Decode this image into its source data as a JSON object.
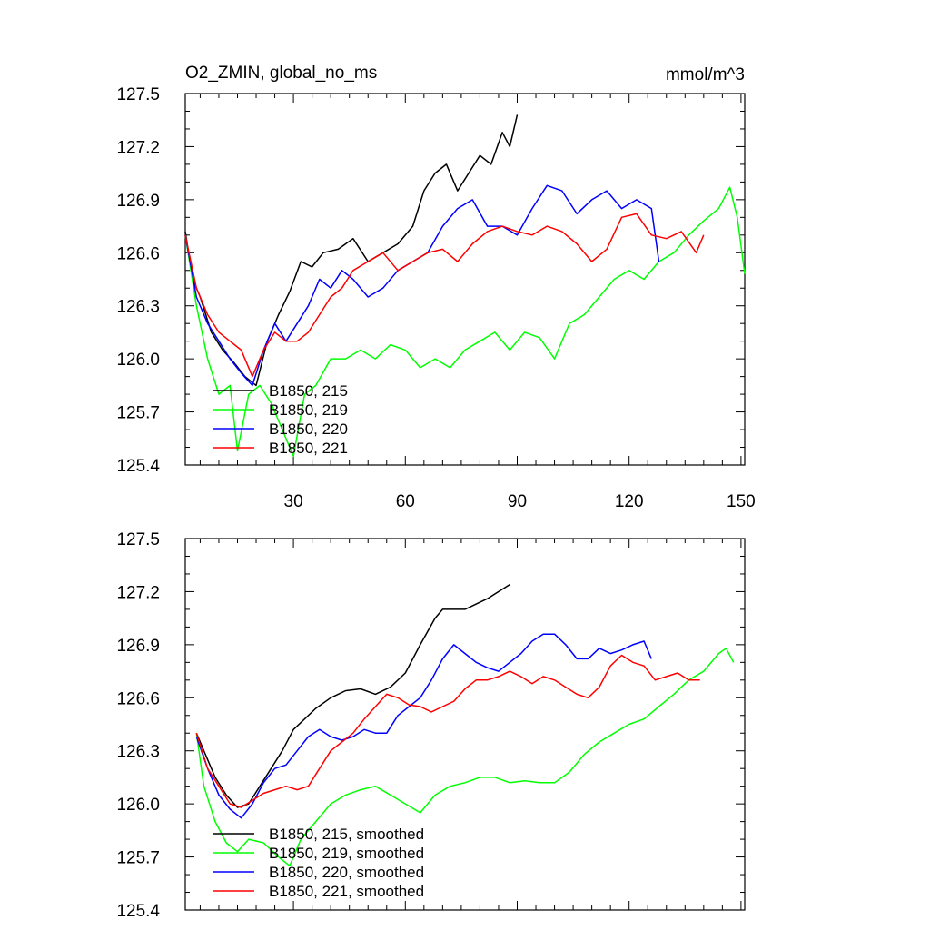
{
  "panel_top": {
    "title_left": "O2_ZMIN, global_no_ms",
    "title_right": "mmol/m^3"
  },
  "chart_data": [
    {
      "type": "line",
      "id": "raw",
      "title": "O2_ZMIN, global_no_ms",
      "units": "mmol/m^3",
      "xlim": [
        1,
        151
      ],
      "ylim": [
        125.4,
        127.5
      ],
      "x_ticks": [
        30,
        60,
        90,
        120,
        150
      ],
      "y_ticks": [
        125.4,
        125.7,
        126.0,
        126.3,
        126.6,
        126.9,
        127.2,
        127.5
      ],
      "y_tick_labels": [
        "125.4",
        "125.7",
        "126.0",
        "126.3",
        "126.6",
        "126.9",
        "127.2",
        "127.5"
      ],
      "x_tick_labels": [
        "30",
        "60",
        "90",
        "120",
        "150"
      ],
      "legend_position": "bottom-left",
      "series": [
        {
          "name": "B1850, 215",
          "color": "#000000",
          "x": [
            1,
            3,
            5,
            8,
            11,
            14,
            17,
            20,
            23,
            26,
            29,
            32,
            35,
            38,
            42,
            46,
            50,
            54,
            58,
            62,
            65,
            68,
            71,
            74,
            77,
            80,
            83,
            86,
            88,
            90
          ],
          "y": [
            126.72,
            126.45,
            126.35,
            126.15,
            126.05,
            125.98,
            125.9,
            125.85,
            126.1,
            126.25,
            126.38,
            126.55,
            126.52,
            126.6,
            126.62,
            126.68,
            126.55,
            126.6,
            126.65,
            126.75,
            126.95,
            127.05,
            127.1,
            126.95,
            127.05,
            127.15,
            127.1,
            127.28,
            127.2,
            127.38
          ]
        },
        {
          "name": "B1850, 219",
          "color": "#00ff00",
          "x": [
            1,
            4,
            7,
            10,
            13,
            15,
            18,
            21,
            24,
            27,
            30,
            33,
            36,
            40,
            44,
            48,
            52,
            56,
            60,
            64,
            68,
            72,
            76,
            80,
            84,
            88,
            92,
            96,
            100,
            104,
            108,
            112,
            116,
            120,
            124,
            128,
            132,
            136,
            140,
            144,
            147,
            149,
            151
          ],
          "y": [
            126.7,
            126.3,
            126.0,
            125.8,
            125.85,
            125.48,
            125.8,
            125.85,
            125.75,
            125.6,
            125.45,
            125.8,
            125.85,
            126.0,
            126.0,
            126.05,
            126.0,
            126.08,
            126.05,
            125.95,
            126.0,
            125.95,
            126.05,
            126.1,
            126.15,
            126.05,
            126.15,
            126.12,
            126.0,
            126.2,
            126.25,
            126.35,
            126.45,
            126.5,
            126.45,
            126.55,
            126.6,
            126.7,
            126.78,
            126.85,
            126.97,
            126.8,
            126.48
          ]
        },
        {
          "name": "B1850, 220",
          "color": "#0000ff",
          "x": [
            1,
            4,
            7,
            10,
            13,
            16,
            19,
            22,
            25,
            28,
            31,
            34,
            37,
            40,
            43,
            46,
            50,
            54,
            58,
            62,
            66,
            70,
            74,
            78,
            82,
            86,
            90,
            94,
            98,
            102,
            106,
            110,
            114,
            118,
            122,
            126,
            128
          ],
          "y": [
            126.7,
            126.35,
            126.2,
            126.1,
            126.0,
            125.92,
            125.85,
            126.05,
            126.2,
            126.1,
            126.2,
            126.3,
            126.45,
            126.4,
            126.5,
            126.45,
            126.35,
            126.4,
            126.5,
            126.55,
            126.6,
            126.75,
            126.85,
            126.9,
            126.75,
            126.75,
            126.7,
            126.85,
            126.98,
            126.95,
            126.82,
            126.9,
            126.95,
            126.85,
            126.9,
            126.85,
            126.55
          ]
        },
        {
          "name": "B1850, 221",
          "color": "#ff0000",
          "x": [
            1,
            4,
            7,
            10,
            13,
            16,
            19,
            22,
            25,
            28,
            31,
            34,
            37,
            40,
            43,
            46,
            50,
            54,
            58,
            62,
            66,
            70,
            74,
            78,
            82,
            86,
            90,
            94,
            98,
            102,
            106,
            110,
            114,
            118,
            122,
            126,
            130,
            134,
            138,
            140
          ],
          "y": [
            126.7,
            126.4,
            126.25,
            126.15,
            126.1,
            126.05,
            125.9,
            126.05,
            126.15,
            126.1,
            126.1,
            126.15,
            126.25,
            126.35,
            126.4,
            126.5,
            126.55,
            126.6,
            126.5,
            126.55,
            126.6,
            126.62,
            126.55,
            126.65,
            126.72,
            126.75,
            126.72,
            126.7,
            126.75,
            126.72,
            126.65,
            126.55,
            126.62,
            126.8,
            126.82,
            126.7,
            126.68,
            126.72,
            126.6,
            126.7
          ]
        }
      ]
    },
    {
      "type": "line",
      "id": "smoothed",
      "xlim": [
        1,
        151
      ],
      "ylim": [
        125.4,
        127.5
      ],
      "x_ticks": [
        30,
        60,
        90,
        120,
        150
      ],
      "y_ticks": [
        125.4,
        125.7,
        126.0,
        126.3,
        126.6,
        126.9,
        127.2,
        127.5
      ],
      "y_tick_labels": [
        "125.4",
        "125.7",
        "126.0",
        "126.3",
        "126.6",
        "126.9",
        "127.2",
        "127.5"
      ],
      "legend_position": "bottom-left",
      "series": [
        {
          "name": "B1850, 215, smoothed",
          "color": "#000000",
          "x": [
            4,
            6,
            9,
            12,
            15,
            18,
            21,
            24,
            27,
            30,
            33,
            36,
            40,
            44,
            48,
            52,
            56,
            60,
            64,
            68,
            70,
            73,
            76,
            79,
            82,
            85,
            88
          ],
          "y": [
            126.4,
            126.3,
            126.15,
            126.05,
            125.98,
            126.0,
            126.1,
            126.2,
            126.3,
            126.42,
            126.48,
            126.54,
            126.6,
            126.64,
            126.65,
            126.62,
            126.66,
            126.74,
            126.9,
            127.05,
            127.1,
            127.1,
            127.1,
            127.13,
            127.16,
            127.2,
            127.24
          ]
        },
        {
          "name": "B1850, 219, smoothed",
          "color": "#00ff00",
          "x": [
            4,
            6,
            9,
            12,
            15,
            18,
            22,
            26,
            29,
            32,
            36,
            40,
            44,
            48,
            52,
            56,
            60,
            64,
            68,
            72,
            76,
            80,
            84,
            88,
            92,
            96,
            100,
            104,
            108,
            112,
            116,
            120,
            124,
            128,
            132,
            136,
            140,
            144,
            146,
            148
          ],
          "y": [
            126.4,
            126.1,
            125.9,
            125.78,
            125.73,
            125.8,
            125.78,
            125.7,
            125.65,
            125.8,
            125.9,
            126.0,
            126.05,
            126.08,
            126.1,
            126.05,
            126.0,
            125.95,
            126.05,
            126.1,
            126.12,
            126.15,
            126.15,
            126.12,
            126.13,
            126.12,
            126.12,
            126.18,
            126.28,
            126.35,
            126.4,
            126.45,
            126.48,
            126.55,
            126.62,
            126.7,
            126.75,
            126.85,
            126.88,
            126.8
          ]
        },
        {
          "name": "B1850, 220, smoothed",
          "color": "#0000ff",
          "x": [
            4,
            7,
            10,
            13,
            16,
            19,
            22,
            25,
            28,
            31,
            34,
            37,
            40,
            43,
            46,
            49,
            52,
            55,
            58,
            61,
            64,
            67,
            70,
            73,
            76,
            79,
            82,
            85,
            88,
            91,
            94,
            97,
            100,
            103,
            106,
            109,
            112,
            115,
            118,
            121,
            124,
            126
          ],
          "y": [
            126.38,
            126.2,
            126.05,
            125.97,
            125.92,
            126.0,
            126.12,
            126.2,
            126.22,
            126.3,
            126.38,
            126.42,
            126.38,
            126.36,
            126.38,
            126.42,
            126.4,
            126.4,
            126.5,
            126.55,
            126.6,
            126.7,
            126.82,
            126.9,
            126.85,
            126.8,
            126.77,
            126.75,
            126.8,
            126.85,
            126.92,
            126.96,
            126.96,
            126.9,
            126.82,
            126.82,
            126.88,
            126.85,
            126.87,
            126.9,
            126.92,
            126.82
          ]
        },
        {
          "name": "B1850, 221, smoothed",
          "color": "#ff0000",
          "x": [
            4,
            7,
            10,
            13,
            16,
            19,
            22,
            25,
            28,
            31,
            34,
            37,
            40,
            43,
            46,
            49,
            52,
            55,
            58,
            61,
            64,
            67,
            70,
            73,
            76,
            79,
            82,
            85,
            88,
            91,
            94,
            97,
            100,
            103,
            106,
            109,
            112,
            115,
            118,
            121,
            124,
            127,
            130,
            133,
            136,
            139
          ],
          "y": [
            126.4,
            126.2,
            126.1,
            126.0,
            125.98,
            126.02,
            126.06,
            126.08,
            126.1,
            126.08,
            126.1,
            126.2,
            126.3,
            126.35,
            126.4,
            126.48,
            126.55,
            126.62,
            126.6,
            126.56,
            126.55,
            126.52,
            126.55,
            126.58,
            126.65,
            126.7,
            126.7,
            126.72,
            126.75,
            126.72,
            126.68,
            126.72,
            126.7,
            126.66,
            126.62,
            126.6,
            126.66,
            126.78,
            126.84,
            126.8,
            126.78,
            126.7,
            126.72,
            126.74,
            126.7,
            126.7
          ]
        }
      ]
    }
  ]
}
